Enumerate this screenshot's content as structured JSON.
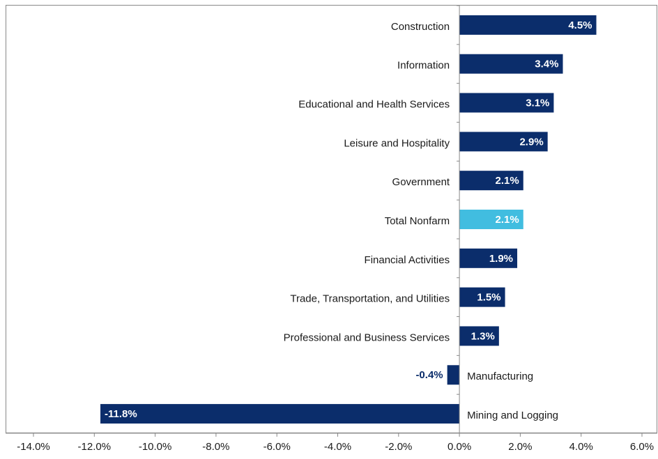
{
  "chart_data": {
    "type": "barh",
    "categories": [
      "Construction",
      "Information",
      "Educational and Health Services",
      "Leisure and Hospitality",
      "Government",
      "Total Nonfarm",
      "Financial Activities",
      "Trade, Transportation, and Utilities",
      "Professional and Business Services",
      "Manufacturing",
      "Mining and Logging"
    ],
    "values": [
      4.5,
      3.4,
      3.1,
      2.9,
      2.1,
      2.1,
      1.9,
      1.5,
      1.3,
      -0.4,
      -11.8
    ],
    "value_labels": [
      "4.5%",
      "3.4%",
      "3.1%",
      "2.9%",
      "2.1%",
      "2.1%",
      "1.9%",
      "1.5%",
      "1.3%",
      "-0.4%",
      "-11.8%"
    ],
    "colors": [
      "#0b2d6b",
      "#0b2d6b",
      "#0b2d6b",
      "#0b2d6b",
      "#0b2d6b",
      "#41bde0",
      "#0b2d6b",
      "#0b2d6b",
      "#0b2d6b",
      "#0b2d6b",
      "#0b2d6b"
    ],
    "xlim": [
      -14,
      6
    ],
    "xticks": [
      {
        "value": -14,
        "label": "-14.0%"
      },
      {
        "value": -12,
        "label": "-12.0%"
      },
      {
        "value": -10,
        "label": "-10.0%"
      },
      {
        "value": -8,
        "label": "-8.0%"
      },
      {
        "value": -6,
        "label": "-6.0%"
      },
      {
        "value": -4,
        "label": "-4.0%"
      },
      {
        "value": -2,
        "label": "-2.0%"
      },
      {
        "value": 0,
        "label": "0.0%"
      },
      {
        "value": 2,
        "label": "2.0%"
      },
      {
        "value": 4,
        "label": "4.0%"
      },
      {
        "value": 6,
        "label": "6.0%"
      }
    ],
    "grid": false
  }
}
